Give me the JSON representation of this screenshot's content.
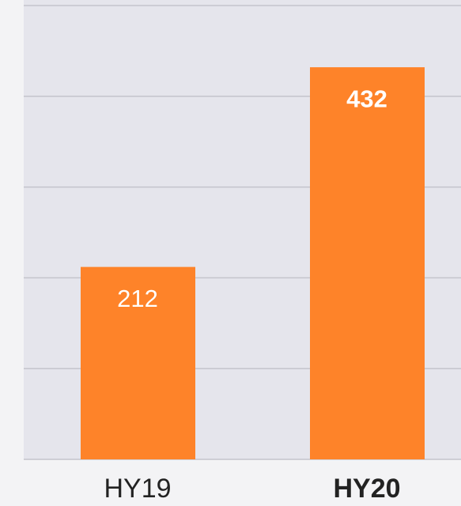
{
  "chart_data": {
    "type": "bar",
    "categories": [
      "HY19",
      "HY20"
    ],
    "values": [
      212,
      432
    ],
    "color": "#fe8329",
    "ylim": [
      0,
      500
    ],
    "yticks": [
      0,
      100,
      200,
      300,
      400,
      500
    ],
    "grid": true,
    "highlight": 1
  }
}
